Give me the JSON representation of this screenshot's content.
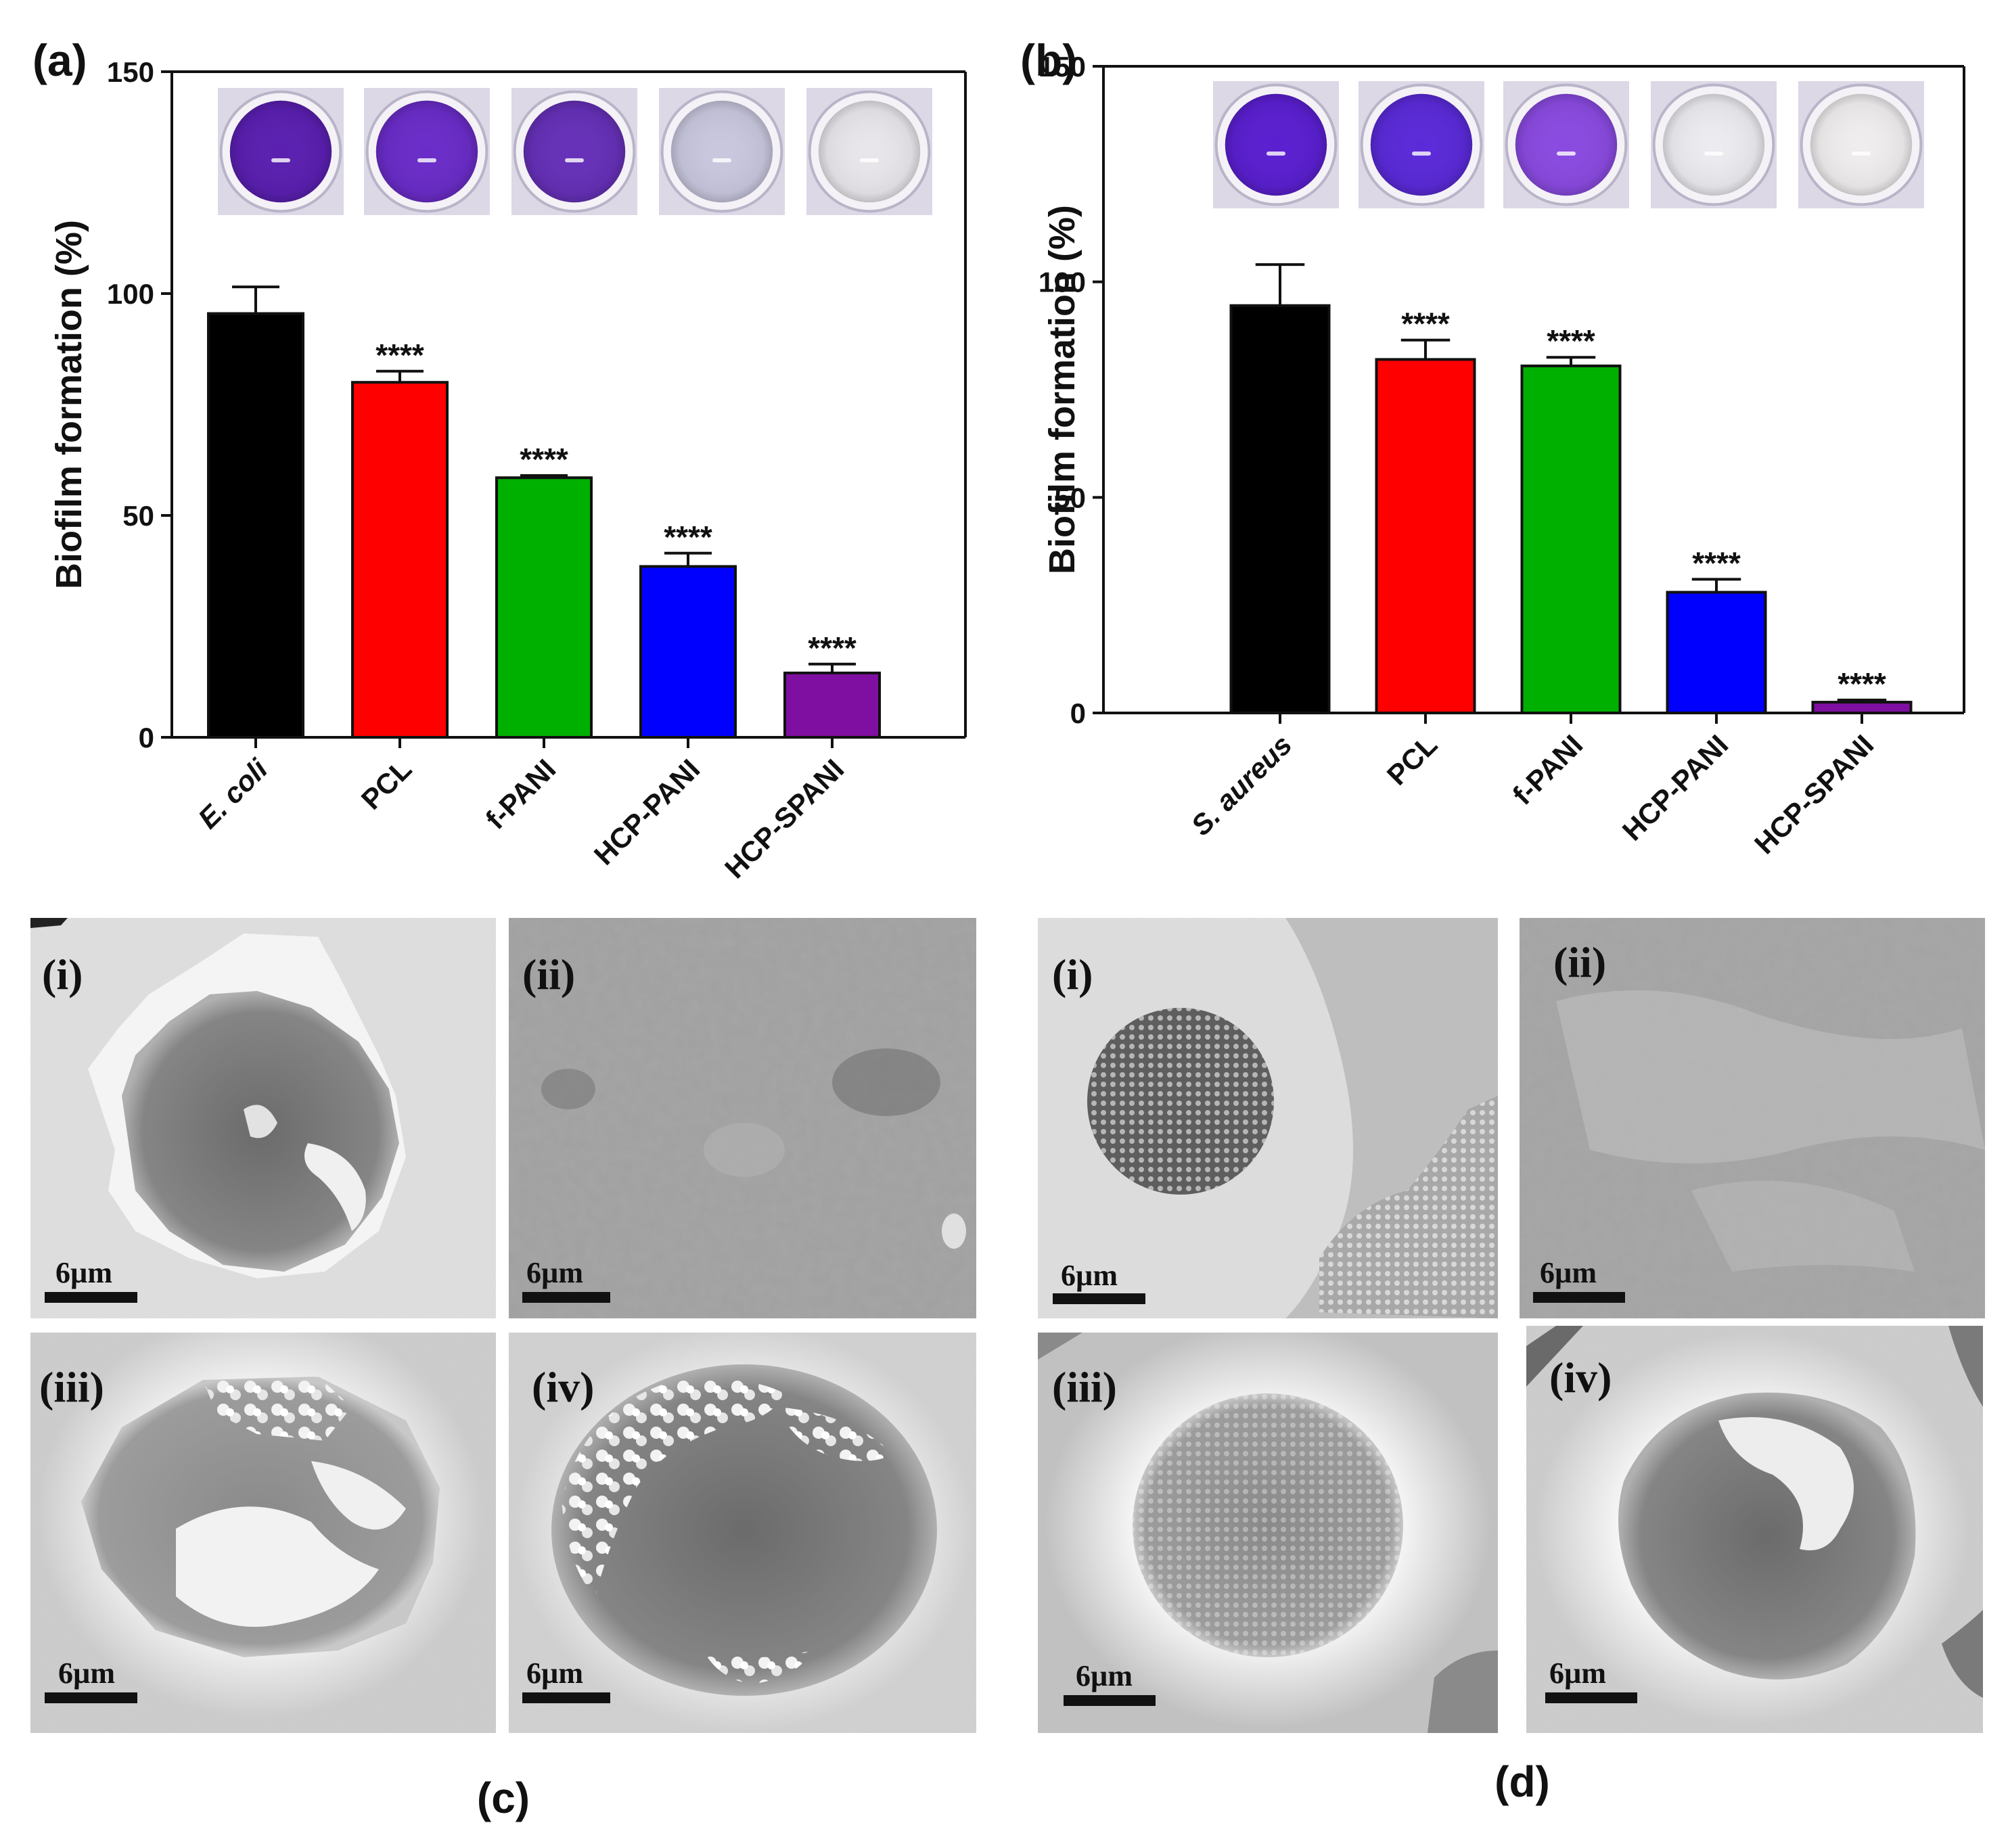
{
  "chart_data": [
    {
      "panel_label": "(a)",
      "type": "bar",
      "ylabel": "Biofilm formation (%)",
      "ylim": [
        0,
        150
      ],
      "yticks": [
        "0",
        "50",
        "100",
        "150"
      ],
      "categories": [
        "E. coli",
        "PCL",
        "f-PANI",
        "HCP-PANI",
        "HCP-SPANI"
      ],
      "values": [
        95.5,
        80,
        58.5,
        38.5,
        14.5
      ],
      "errors": [
        6,
        2.5,
        0.5,
        3,
        2
      ],
      "significance": [
        "",
        "****",
        "****",
        "****",
        "****"
      ],
      "colors": [
        "#000000",
        "#ff0000",
        "#00b000",
        "#0000ff",
        "#7f0fa0"
      ],
      "well_colors": [
        "#5a1fb0",
        "#6a2cc8",
        "#6630b8",
        "#c9c7de",
        "#e8e6ea"
      ],
      "grid": false
    },
    {
      "panel_label": "(b)",
      "type": "bar",
      "ylabel": "Biofilm formation (%)",
      "ylim": [
        0,
        150
      ],
      "yticks": [
        "0",
        "50",
        "100",
        "150"
      ],
      "categories": [
        "S. aureus",
        "PCL",
        "f-PANI",
        "HCP-PANI",
        "HCP-SPANI"
      ],
      "values": [
        94.5,
        82,
        80.5,
        28,
        2.5
      ],
      "errors": [
        9.5,
        4.5,
        2,
        3,
        0.5
      ],
      "significance": [
        "",
        "****",
        "****",
        "****",
        "****"
      ],
      "colors": [
        "#000000",
        "#ff0000",
        "#00b000",
        "#0000ff",
        "#7f0fa0"
      ],
      "well_colors": [
        "#5a1fd0",
        "#5a2ad8",
        "#8a4ae0",
        "#ecebef",
        "#efedee"
      ],
      "grid": false
    }
  ],
  "sem": {
    "c": {
      "label": "(c)",
      "images": [
        {
          "label": "(i)",
          "scale": "6µm"
        },
        {
          "label": "(ii)",
          "scale": "6µm"
        },
        {
          "label": "(iii)",
          "scale": "6µm"
        },
        {
          "label": "(iv)",
          "scale": "6µm"
        }
      ]
    },
    "d": {
      "label": "(d)",
      "images": [
        {
          "label": "(i)",
          "scale": "6µm"
        },
        {
          "label": "(ii)",
          "scale": "6µm"
        },
        {
          "label": "(iii)",
          "scale": "6µm"
        },
        {
          "label": "(iv)",
          "scale": "6µm"
        }
      ]
    }
  }
}
